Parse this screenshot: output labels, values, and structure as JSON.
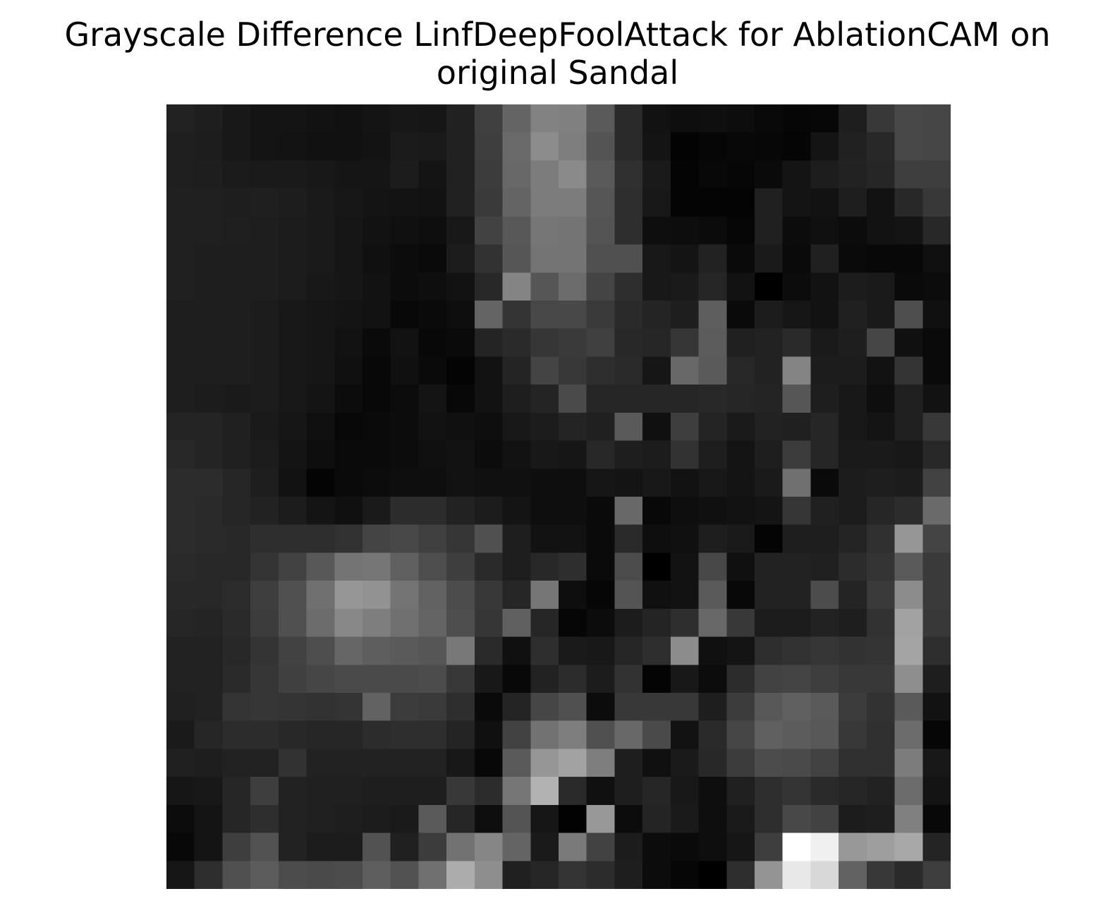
{
  "chart_data": {
    "type": "heatmap",
    "title_lines": [
      "Grayscale Difference LinfDeepFoolAttack for AblationCAM on",
      "original Sandal"
    ],
    "colormap": "gray",
    "axes_visible": false,
    "rows": 28,
    "cols": 28,
    "values": [
      [
        34,
        30,
        24,
        20,
        20,
        18,
        17,
        20,
        23,
        22,
        33,
        64,
        100,
        130,
        128,
        90,
        42,
        18,
        14,
        15,
        13,
        9,
        6,
        7,
        30,
        56,
        72,
        70
      ],
      [
        31,
        29,
        24,
        20,
        19,
        17,
        17,
        19,
        27,
        26,
        33,
        62,
        106,
        140,
        126,
        84,
        42,
        20,
        3,
        6,
        8,
        7,
        5,
        20,
        33,
        40,
        72,
        70
      ],
      [
        31,
        30,
        27,
        26,
        26,
        24,
        21,
        21,
        28,
        20,
        33,
        60,
        104,
        124,
        138,
        90,
        48,
        26,
        4,
        8,
        6,
        10,
        20,
        29,
        34,
        38,
        62,
        62
      ],
      [
        32,
        32,
        30,
        31,
        29,
        26,
        23,
        20,
        19,
        18,
        33,
        58,
        100,
        124,
        124,
        86,
        46,
        24,
        4,
        4,
        4,
        32,
        20,
        18,
        30,
        18,
        40,
        56
      ],
      [
        32,
        32,
        31,
        30,
        28,
        26,
        22,
        18,
        16,
        14,
        24,
        66,
        88,
        118,
        116,
        84,
        46,
        14,
        13,
        11,
        6,
        32,
        12,
        16,
        12,
        18,
        20,
        40
      ],
      [
        32,
        30,
        30,
        30,
        28,
        26,
        22,
        16,
        12,
        10,
        28,
        50,
        86,
        116,
        116,
        80,
        80,
        24,
        20,
        34,
        10,
        26,
        10,
        32,
        10,
        8,
        8,
        16
      ],
      [
        32,
        30,
        30,
        30,
        28,
        24,
        22,
        18,
        12,
        14,
        18,
        40,
        132,
        86,
        108,
        68,
        46,
        24,
        26,
        38,
        18,
        0,
        12,
        18,
        28,
        26,
        10,
        12
      ],
      [
        30,
        30,
        30,
        28,
        24,
        22,
        20,
        18,
        8,
        10,
        14,
        100,
        52,
        72,
        72,
        58,
        42,
        36,
        30,
        94,
        10,
        28,
        22,
        18,
        32,
        26,
        78,
        16
      ],
      [
        30,
        30,
        30,
        28,
        24,
        22,
        18,
        10,
        18,
        8,
        10,
        36,
        42,
        54,
        58,
        64,
        40,
        38,
        54,
        92,
        32,
        34,
        42,
        26,
        30,
        70,
        16,
        10
      ],
      [
        30,
        30,
        30,
        28,
        24,
        22,
        16,
        8,
        16,
        10,
        4,
        18,
        36,
        68,
        56,
        46,
        42,
        22,
        104,
        90,
        40,
        34,
        132,
        28,
        28,
        18,
        52,
        10
      ],
      [
        30,
        28,
        26,
        28,
        24,
        20,
        12,
        8,
        12,
        20,
        8,
        18,
        30,
        36,
        74,
        38,
        38,
        38,
        38,
        40,
        38,
        36,
        86,
        30,
        24,
        14,
        32,
        18
      ],
      [
        36,
        36,
        32,
        26,
        22,
        16,
        8,
        10,
        12,
        18,
        16,
        14,
        24,
        28,
        36,
        32,
        90,
        16,
        62,
        36,
        26,
        34,
        32,
        38,
        24,
        20,
        32,
        56
      ],
      [
        40,
        36,
        32,
        28,
        20,
        14,
        10,
        10,
        12,
        16,
        18,
        12,
        18,
        24,
        22,
        40,
        30,
        28,
        50,
        30,
        20,
        30,
        60,
        38,
        26,
        26,
        24,
        40
      ],
      [
        44,
        44,
        38,
        30,
        18,
        4,
        10,
        12,
        14,
        14,
        18,
        16,
        16,
        14,
        14,
        22,
        20,
        24,
        18,
        24,
        20,
        26,
        112,
        10,
        28,
        30,
        28,
        66
      ],
      [
        44,
        42,
        38,
        34,
        28,
        20,
        16,
        26,
        44,
        44,
        34,
        28,
        20,
        14,
        14,
        10,
        104,
        8,
        14,
        16,
        18,
        20,
        54,
        32,
        28,
        38,
        44,
        106
      ],
      [
        44,
        42,
        40,
        46,
        46,
        46,
        50,
        68,
        72,
        64,
        54,
        80,
        30,
        18,
        18,
        10,
        42,
        14,
        16,
        30,
        26,
        4,
        30,
        30,
        36,
        48,
        150,
        68
      ],
      [
        42,
        40,
        40,
        52,
        66,
        88,
        116,
        118,
        96,
        78,
        62,
        42,
        30,
        40,
        46,
        10,
        76,
        0,
        18,
        72,
        16,
        34,
        34,
        32,
        44,
        52,
        90,
        58
      ],
      [
        40,
        40,
        44,
        62,
        80,
        112,
        150,
        146,
        116,
        98,
        76,
        56,
        38,
        118,
        14,
        6,
        84,
        16,
        18,
        90,
        8,
        34,
        34,
        76,
        36,
        58,
        140,
        58
      ],
      [
        38,
        36,
        42,
        60,
        80,
        108,
        136,
        126,
        112,
        100,
        78,
        54,
        96,
        38,
        6,
        12,
        28,
        36,
        46,
        104,
        56,
        28,
        28,
        34,
        30,
        50,
        162,
        56
      ],
      [
        34,
        34,
        40,
        52,
        66,
        78,
        102,
        94,
        90,
        86,
        120,
        42,
        16,
        46,
        26,
        24,
        38,
        46,
        140,
        16,
        20,
        46,
        50,
        54,
        50,
        52,
        164,
        46
      ],
      [
        34,
        34,
        42,
        54,
        64,
        70,
        74,
        74,
        74,
        76,
        56,
        24,
        8,
        34,
        44,
        28,
        50,
        4,
        24,
        12,
        44,
        66,
        68,
        62,
        56,
        56,
        142,
        30
      ],
      [
        32,
        34,
        52,
        54,
        52,
        50,
        52,
        98,
        60,
        58,
        46,
        10,
        36,
        70,
        80,
        12,
        56,
        56,
        56,
        30,
        60,
        88,
        96,
        90,
        60,
        50,
        90,
        18
      ],
      [
        26,
        38,
        44,
        44,
        40,
        38,
        38,
        44,
        46,
        46,
        36,
        16,
        66,
        114,
        126,
        80,
        104,
        74,
        18,
        42,
        70,
        96,
        92,
        88,
        56,
        48,
        108,
        6
      ],
      [
        32,
        30,
        34,
        34,
        50,
        34,
        34,
        34,
        34,
        34,
        24,
        8,
        90,
        150,
        162,
        126,
        30,
        16,
        26,
        40,
        60,
        76,
        74,
        66,
        48,
        48,
        124,
        24
      ],
      [
        22,
        24,
        38,
        62,
        34,
        32,
        32,
        30,
        30,
        30,
        56,
        44,
        118,
        178,
        42,
        16,
        30,
        38,
        24,
        14,
        32,
        46,
        52,
        42,
        38,
        34,
        108,
        20
      ],
      [
        12,
        20,
        38,
        46,
        34,
        32,
        30,
        28,
        26,
        90,
        38,
        14,
        84,
        22,
        2,
        152,
        12,
        36,
        26,
        14,
        26,
        46,
        72,
        66,
        28,
        30,
        128,
        8
      ],
      [
        8,
        20,
        62,
        82,
        34,
        28,
        28,
        82,
        32,
        60,
        114,
        134,
        100,
        26,
        122,
        66,
        28,
        12,
        10,
        14,
        22,
        62,
        255,
        240,
        152,
        158,
        168,
        36
      ],
      [
        22,
        46,
        80,
        92,
        76,
        74,
        76,
        94,
        82,
        112,
        172,
        142,
        32,
        38,
        52,
        44,
        30,
        12,
        6,
        0,
        46,
        148,
        232,
        216,
        98,
        56,
        42,
        62
      ]
    ]
  }
}
